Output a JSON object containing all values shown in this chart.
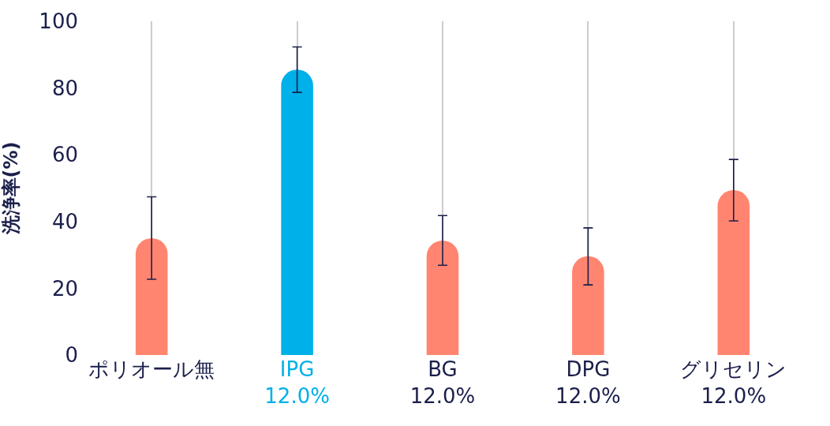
{
  "chart_data": {
    "type": "bar",
    "categories": [
      "ポリオール無",
      "IPG\n12.0%",
      "BG\n12.0%",
      "DPG\n12.0%",
      "グリセリン\n12.0%"
    ],
    "values": [
      35,
      85.5,
      34.3,
      29.6,
      49.4
    ],
    "colors": [
      "#ff8570",
      "#00b0e8",
      "#ff8570",
      "#ff8570",
      "#ff8570"
    ],
    "errors": [
      [
        22.7,
        47.4
      ],
      [
        78.7,
        92.3
      ],
      [
        26.9,
        41.8
      ],
      [
        21.0,
        38.1
      ],
      [
        40.2,
        58.6
      ]
    ],
    "ylabel": "洗浄率(%)",
    "ylim": [
      0,
      100
    ],
    "yticks": [
      0,
      20,
      40,
      60,
      80,
      100
    ],
    "grid": "x"
  }
}
